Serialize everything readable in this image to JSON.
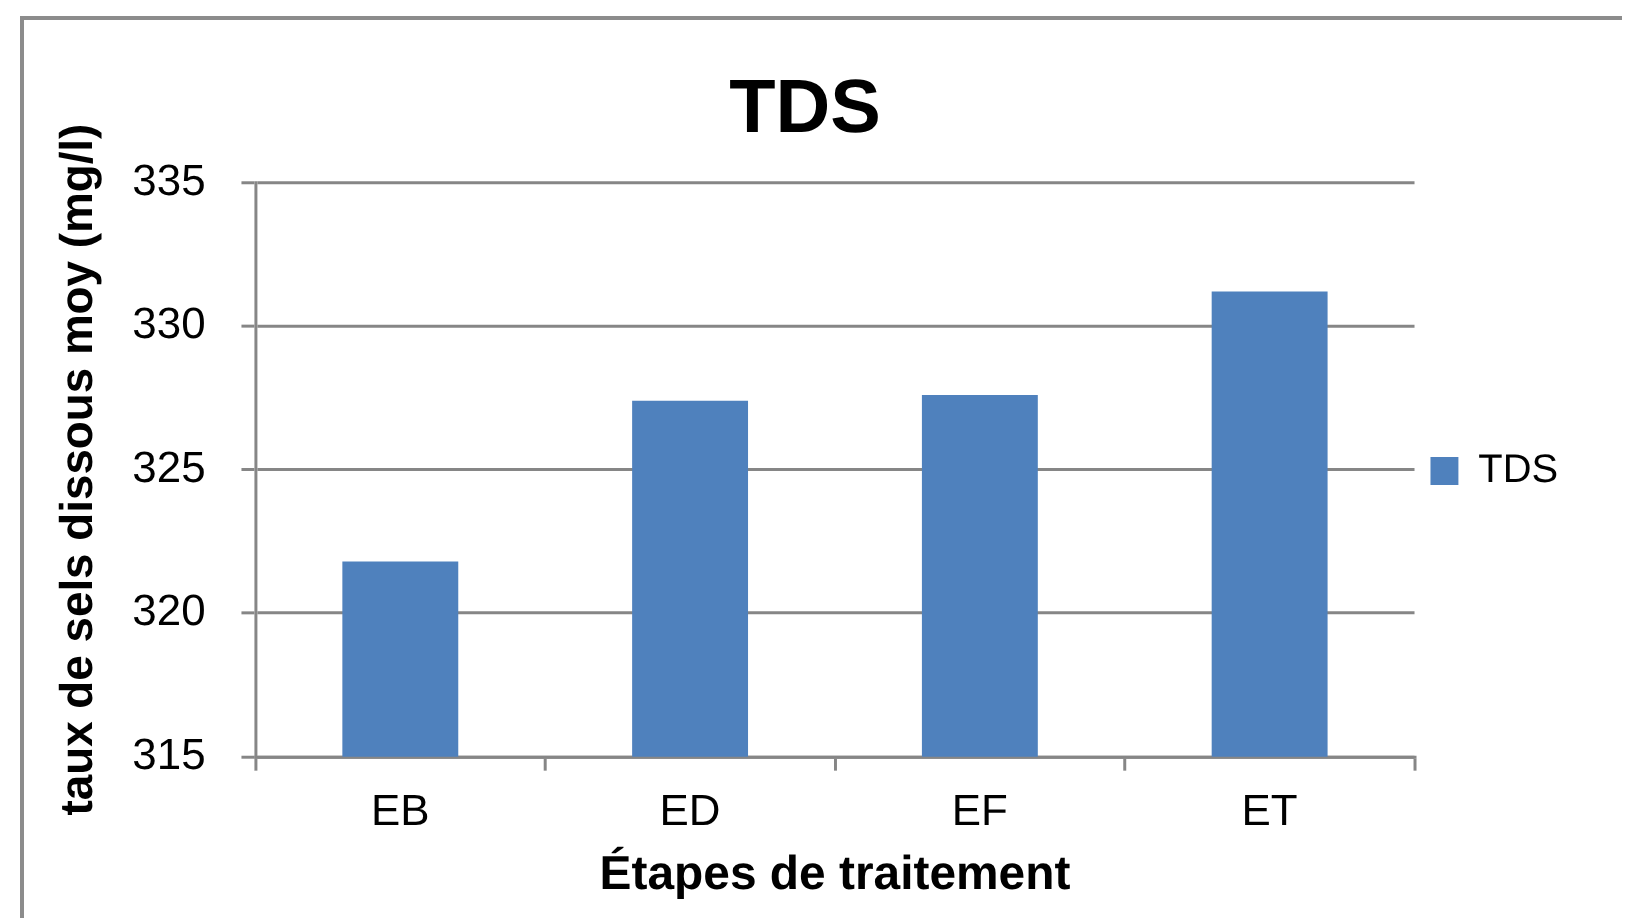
{
  "chart_data": {
    "type": "bar",
    "title": "TDS",
    "xlabel": "Étapes de traitement",
    "ylabel": "taux de sels dissous moy (mg/l)",
    "categories": [
      "EB",
      "ED",
      "EF",
      "ET"
    ],
    "series": [
      {
        "name": "TDS",
        "color": "#4f81bd",
        "values": [
          321.8,
          327.4,
          327.6,
          331.2
        ]
      }
    ],
    "ylim": [
      315,
      335
    ],
    "yticks": [
      315,
      320,
      325,
      330,
      335
    ],
    "grid": "y",
    "legend": "right"
  }
}
